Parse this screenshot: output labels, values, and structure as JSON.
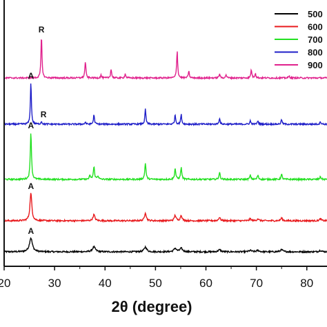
{
  "chart_data": {
    "type": "line",
    "xlabel": "2θ (degree)",
    "xlim": [
      20,
      84
    ],
    "xticks": [
      20,
      30,
      40,
      50,
      60,
      70,
      80
    ],
    "legend_position": "top-right",
    "series": [
      {
        "name": "500",
        "color": "#000000",
        "peaks": [
          [
            25.3,
            20,
            0.35
          ],
          [
            37.8,
            7,
            0.35
          ],
          [
            48.0,
            7,
            0.3
          ],
          [
            53.9,
            5,
            0.3
          ],
          [
            55.1,
            5,
            0.3
          ],
          [
            62.7,
            3,
            0.3
          ],
          [
            68.8,
            2,
            0.3
          ],
          [
            70.3,
            2,
            0.3
          ],
          [
            75.0,
            3,
            0.3
          ],
          [
            82.7,
            2,
            0.3
          ]
        ],
        "annotations": [
          {
            "label": "A",
            "x": 25.3
          }
        ]
      },
      {
        "name": "600",
        "color": "#e8191c",
        "peaks": [
          [
            25.3,
            40,
            0.22
          ],
          [
            37.8,
            9,
            0.22
          ],
          [
            48.0,
            12,
            0.2
          ],
          [
            53.9,
            8,
            0.2
          ],
          [
            55.1,
            8,
            0.2
          ],
          [
            62.7,
            5,
            0.2
          ],
          [
            68.8,
            3,
            0.2
          ],
          [
            70.3,
            3,
            0.2
          ],
          [
            75.0,
            4,
            0.2
          ],
          [
            82.7,
            3,
            0.2
          ]
        ],
        "annotations": [
          {
            "label": "A",
            "x": 25.3
          }
        ]
      },
      {
        "name": "700",
        "color": "#22e020",
        "peaks": [
          [
            25.3,
            68,
            0.14
          ],
          [
            37.0,
            5,
            0.15
          ],
          [
            37.8,
            18,
            0.15
          ],
          [
            38.6,
            5,
            0.15
          ],
          [
            48.0,
            24,
            0.14
          ],
          [
            53.9,
            16,
            0.14
          ],
          [
            55.1,
            17,
            0.14
          ],
          [
            62.7,
            10,
            0.14
          ],
          [
            68.8,
            6,
            0.14
          ],
          [
            70.3,
            6,
            0.14
          ],
          [
            75.0,
            7,
            0.14
          ],
          [
            82.7,
            4,
            0.14
          ]
        ],
        "annotations": [
          {
            "label": "A",
            "x": 25.3
          }
        ]
      },
      {
        "name": "800",
        "color": "#1e1ec8",
        "peaks": [
          [
            25.3,
            60,
            0.12
          ],
          [
            27.4,
            4,
            0.12
          ],
          [
            36.1,
            3,
            0.12
          ],
          [
            37.8,
            14,
            0.12
          ],
          [
            48.0,
            22,
            0.12
          ],
          [
            53.9,
            14,
            0.12
          ],
          [
            55.1,
            14,
            0.12
          ],
          [
            62.7,
            9,
            0.12
          ],
          [
            68.8,
            5,
            0.12
          ],
          [
            70.3,
            5,
            0.12
          ],
          [
            75.0,
            7,
            0.12
          ],
          [
            82.7,
            4,
            0.12
          ]
        ],
        "annotations": [
          {
            "label": "A",
            "x": 25.3
          },
          {
            "label": "R",
            "x": 27.4
          }
        ]
      },
      {
        "name": "900",
        "color": "#e0208c",
        "peaks": [
          [
            27.4,
            60,
            0.12
          ],
          [
            36.1,
            24,
            0.12
          ],
          [
            39.2,
            4,
            0.12
          ],
          [
            41.2,
            13,
            0.12
          ],
          [
            44.0,
            6,
            0.12
          ],
          [
            54.3,
            40,
            0.12
          ],
          [
            56.6,
            10,
            0.12
          ],
          [
            62.7,
            6,
            0.12
          ],
          [
            64.0,
            5,
            0.12
          ],
          [
            69.0,
            12,
            0.12
          ],
          [
            69.8,
            7,
            0.12
          ],
          [
            76.5,
            3,
            0.12
          ]
        ],
        "annotations": [
          {
            "label": "R",
            "x": 27.4
          }
        ]
      }
    ]
  }
}
